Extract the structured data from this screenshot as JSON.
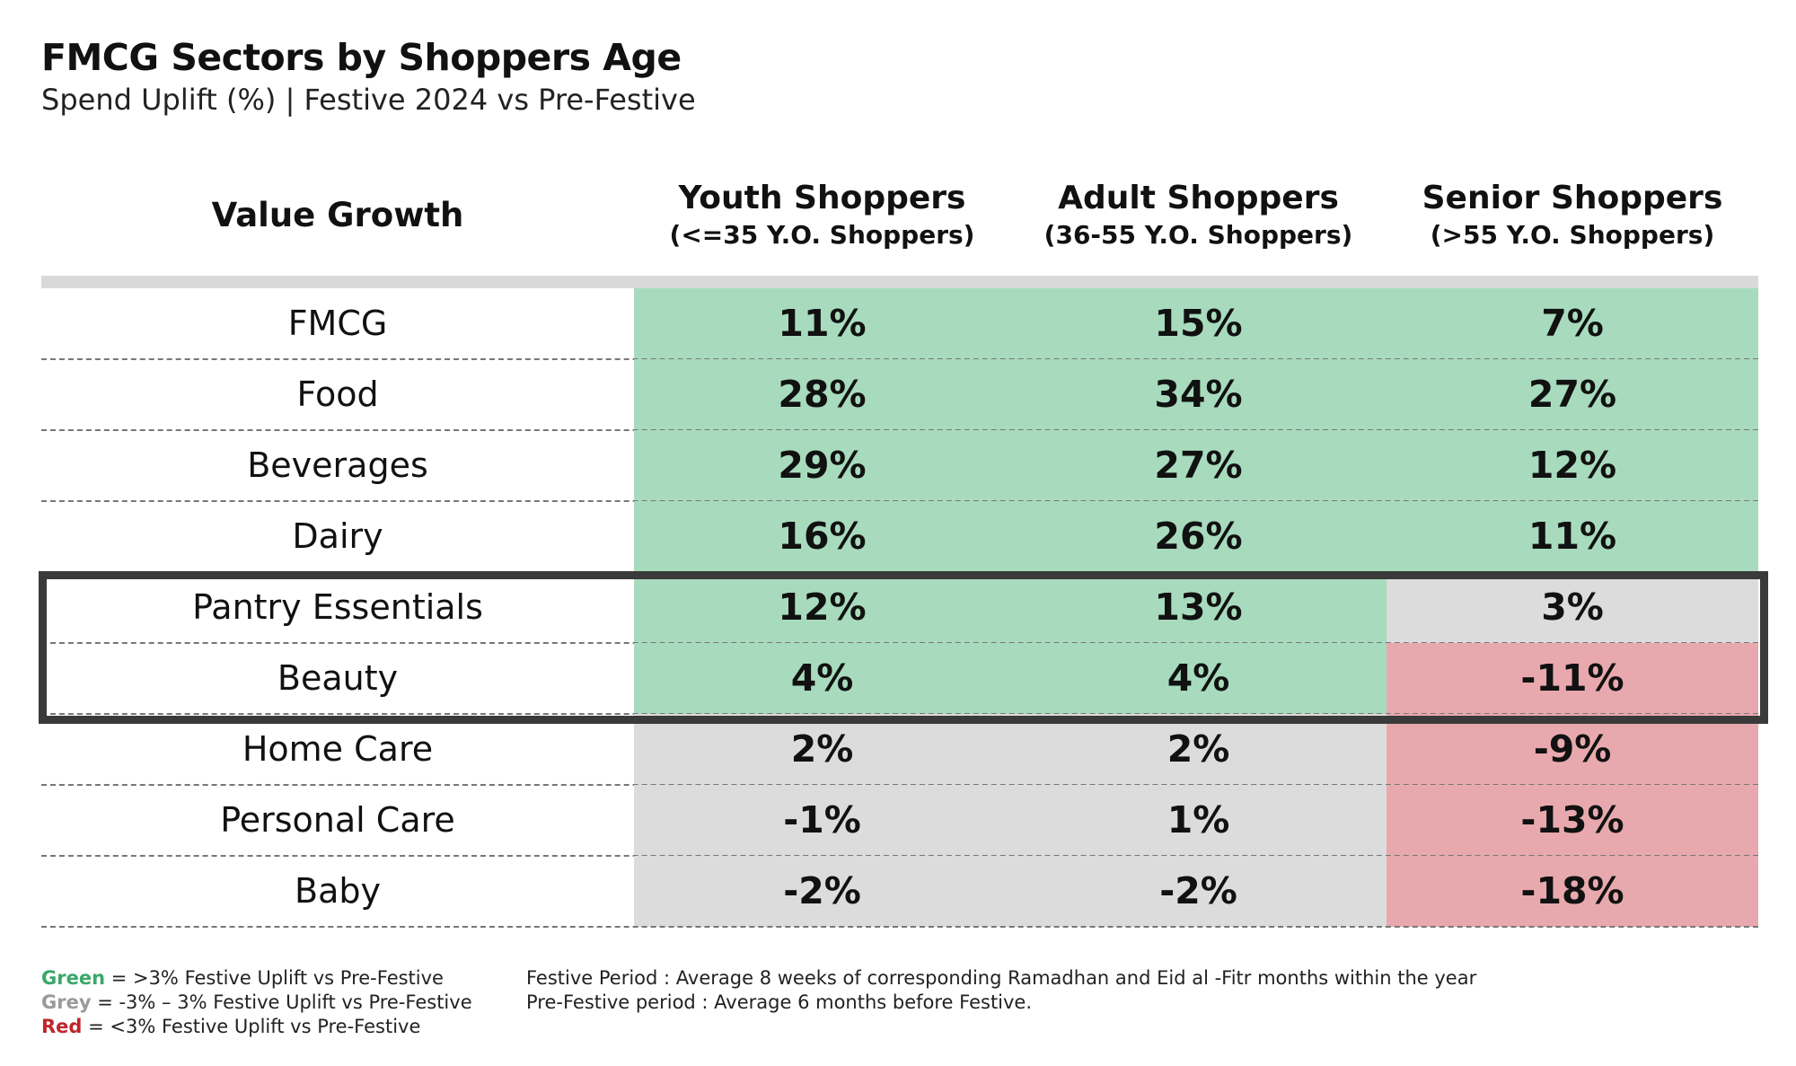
{
  "header": {
    "title": "FMCG Sectors by Shoppers Age",
    "subtitle": "Spend Uplift (%) | Festive 2024 vs Pre-Festive"
  },
  "chart_data": {
    "type": "table",
    "row_header": "Value Growth",
    "columns": [
      {
        "name": "Youth Shoppers",
        "sub": "(<=35 Y.O. Shoppers)"
      },
      {
        "name": "Adult Shoppers",
        "sub": "(36-55 Y.O. Shoppers)"
      },
      {
        "name": "Senior Shoppers",
        "sub": "(>55 Y.O. Shoppers)"
      }
    ],
    "rows": [
      {
        "label": "FMCG",
        "values": [
          "11%",
          "15%",
          "7%"
        ],
        "status": [
          "green",
          "green",
          "green"
        ]
      },
      {
        "label": "Food",
        "values": [
          "28%",
          "34%",
          "27%"
        ],
        "status": [
          "green",
          "green",
          "green"
        ]
      },
      {
        "label": "Beverages",
        "values": [
          "29%",
          "27%",
          "12%"
        ],
        "status": [
          "green",
          "green",
          "green"
        ]
      },
      {
        "label": "Dairy",
        "values": [
          "16%",
          "26%",
          "11%"
        ],
        "status": [
          "green",
          "green",
          "green"
        ]
      },
      {
        "label": "Pantry Essentials",
        "values": [
          "12%",
          "13%",
          "3%"
        ],
        "status": [
          "green",
          "green",
          "grey"
        ]
      },
      {
        "label": "Beauty",
        "values": [
          "4%",
          "4%",
          "-11%"
        ],
        "status": [
          "green",
          "green",
          "red"
        ]
      },
      {
        "label": "Home Care",
        "values": [
          "2%",
          "2%",
          "-9%"
        ],
        "status": [
          "grey",
          "grey",
          "red"
        ]
      },
      {
        "label": "Personal Care",
        "values": [
          "-1%",
          "1%",
          "-13%"
        ],
        "status": [
          "grey",
          "grey",
          "red"
        ]
      },
      {
        "label": "Baby",
        "values": [
          "-2%",
          "-2%",
          "-18%"
        ],
        "status": [
          "grey",
          "grey",
          "red"
        ]
      }
    ],
    "highlighted_rows": [
      "Pantry Essentials",
      "Beauty"
    ],
    "colors": {
      "green": "#a8dbbd",
      "grey": "#dcdcdc",
      "red": "#e8a9ae"
    }
  },
  "legend": {
    "green_word": "Green",
    "green_text": " = >3% Festive Uplift vs Pre-Festive",
    "grey_word": "Grey",
    "grey_text": " = -3% – 3% Festive Uplift vs Pre-Festive",
    "red_word": "Red",
    "red_text": " = <3% Festive Uplift vs Pre-Festive"
  },
  "notes": {
    "line1": "Festive Period : Average 8 weeks of corresponding Ramadhan and Eid al -Fitr months within the year",
    "line2": "Pre-Festive period : Average 6 months before Festive."
  }
}
